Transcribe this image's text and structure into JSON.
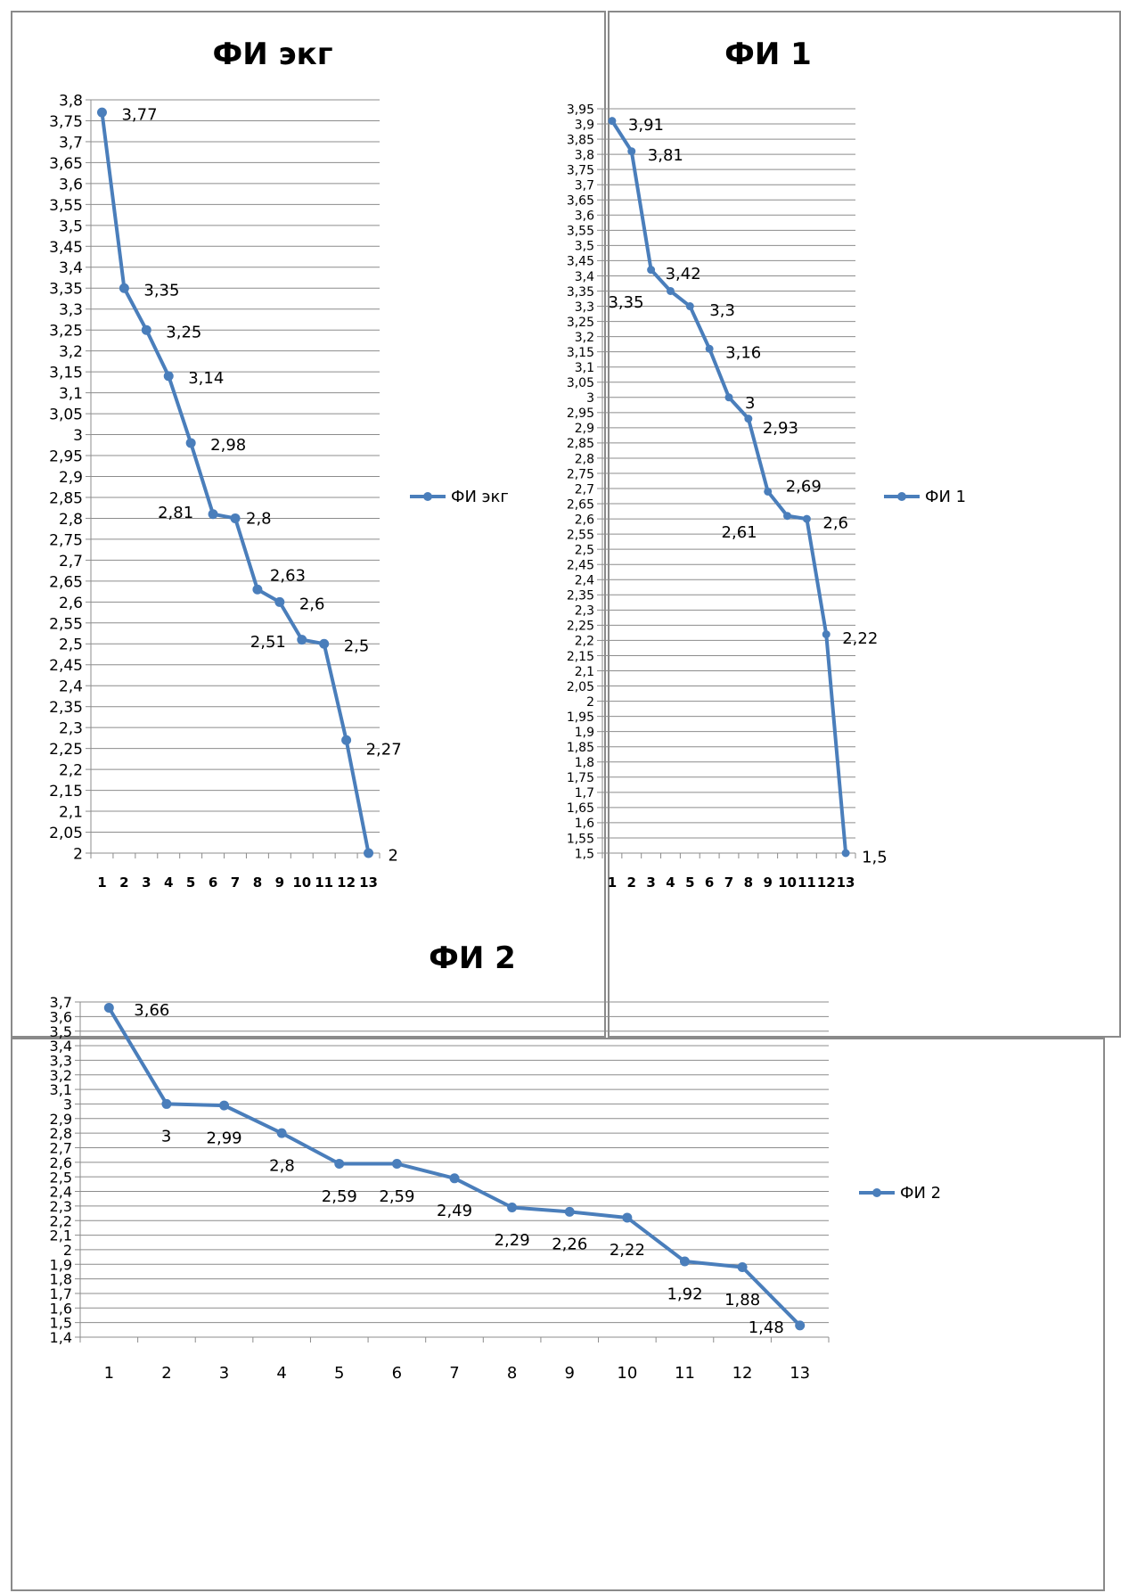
{
  "chart_data": [
    {
      "type": "line",
      "title": "ФИ экг",
      "categories": [
        "1",
        "2",
        "3",
        "4",
        "5",
        "6",
        "7",
        "8",
        "9",
        "10",
        "11",
        "12",
        "13"
      ],
      "series": [
        {
          "name": "ФИ экг",
          "values": [
            3.77,
            3.35,
            3.25,
            3.14,
            2.98,
            2.81,
            2.8,
            2.63,
            2.6,
            2.51,
            2.5,
            2.27,
            2
          ]
        }
      ],
      "data_labels": [
        "3,77",
        "3,35",
        "3,25",
        "3,14",
        "2,98",
        "2,81",
        "2,8",
        "2,63",
        "2,6",
        "2,51",
        "2,5",
        "2,27",
        "2"
      ],
      "ylim": [
        2,
        3.8
      ],
      "yticks": [
        "2",
        "2,05",
        "2,1",
        "2,15",
        "2,2",
        "2,25",
        "2,3",
        "2,35",
        "2,4",
        "2,45",
        "2,5",
        "2,55",
        "2,6",
        "2,65",
        "2,7",
        "2,75",
        "2,8",
        "2,85",
        "2,9",
        "2,95",
        "3",
        "3,05",
        "3,1",
        "3,15",
        "3,2",
        "3,25",
        "3,3",
        "3,35",
        "3,4",
        "3,45",
        "3,5",
        "3,55",
        "3,6",
        "3,65",
        "3,7",
        "3,75",
        "3,8"
      ],
      "grid": true,
      "legend": "right",
      "color": "#4a7ebb"
    },
    {
      "type": "line",
      "title": "ФИ 1",
      "categories": [
        "1",
        "2",
        "3",
        "4",
        "5",
        "6",
        "7",
        "8",
        "9",
        "10",
        "11",
        "12",
        "13"
      ],
      "series": [
        {
          "name": "ФИ 1",
          "values": [
            3.91,
            3.81,
            3.42,
            3.35,
            3.3,
            3.16,
            3,
            2.93,
            2.69,
            2.61,
            2.6,
            2.22,
            1.5
          ]
        }
      ],
      "data_labels": [
        "3,91",
        "3,81",
        "3,42",
        "3,35",
        "3,3",
        "3,16",
        "3",
        "2,93",
        "2,69",
        "2,61",
        "2,6",
        "2,22",
        "1,5"
      ],
      "ylim": [
        1.5,
        3.95
      ],
      "yticks": [
        "1,5",
        "1,55",
        "1,6",
        "1,65",
        "1,7",
        "1,75",
        "1,8",
        "1,85",
        "1,9",
        "1,95",
        "2",
        "2,05",
        "2,1",
        "2,15",
        "2,2",
        "2,25",
        "2,3",
        "2,35",
        "2,4",
        "2,45",
        "2,5",
        "2,55",
        "2,6",
        "2,65",
        "2,7",
        "2,75",
        "2,8",
        "2,85",
        "2,9",
        "2,95",
        "3",
        "3,05",
        "3,1",
        "3,15",
        "3,2",
        "3,25",
        "3,3",
        "3,35",
        "3,4",
        "3,45",
        "3,5",
        "3,55",
        "3,6",
        "3,65",
        "3,7",
        "3,75",
        "3,8",
        "3,85",
        "3,9",
        "3,95"
      ],
      "grid": true,
      "legend": "right",
      "color": "#4a7ebb"
    },
    {
      "type": "line",
      "title": "ФИ 2",
      "categories": [
        "1",
        "2",
        "3",
        "4",
        "5",
        "6",
        "7",
        "8",
        "9",
        "10",
        "11",
        "12",
        "13"
      ],
      "series": [
        {
          "name": "ФИ 2",
          "values": [
            3.66,
            3,
            2.99,
            2.8,
            2.59,
            2.59,
            2.49,
            2.29,
            2.26,
            2.22,
            1.92,
            1.88,
            1.48
          ]
        }
      ],
      "data_labels": [
        "3,66",
        "3",
        "2,99",
        "2,8",
        "2,59",
        "2,59",
        "2,49",
        "2,29",
        "2,26",
        "2,22",
        "1,92",
        "1,88",
        "1,48"
      ],
      "ylim": [
        1.4,
        3.7
      ],
      "yticks": [
        "1,4",
        "1,5",
        "1,6",
        "1,7",
        "1,8",
        "1,9",
        "2",
        "2,1",
        "2,2",
        "2,3",
        "2,4",
        "2,5",
        "2,6",
        "2,7",
        "2,8",
        "2,9",
        "3",
        "3,1",
        "3,2",
        "3,3",
        "3,4",
        "3,5",
        "3,6",
        "3,7"
      ],
      "grid": true,
      "legend": "right",
      "color": "#4a7ebb"
    }
  ]
}
